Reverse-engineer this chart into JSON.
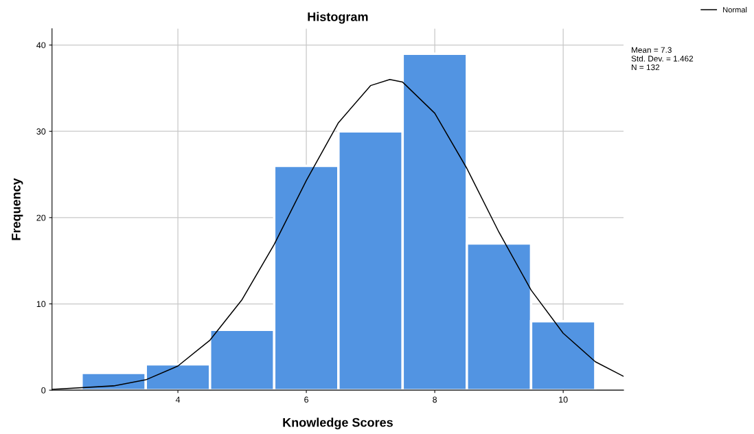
{
  "chart_data": {
    "type": "histogram",
    "title": "Histogram",
    "xlabel": "Knowledge Scores",
    "ylabel": "Frequency",
    "bins": [
      2.5,
      3.5,
      4.5,
      5.5,
      6.5,
      7.5,
      8.5,
      9.5,
      10.5
    ],
    "values": [
      2,
      3,
      7,
      26,
      30,
      39,
      17,
      8
    ],
    "color": "#5294e2",
    "series": [
      {
        "type": "line",
        "name": "Normal",
        "color": "#000000",
        "x": [
          2.04,
          3,
          3.5,
          4,
          4.5,
          5,
          5.5,
          6,
          6.5,
          7,
          7.3,
          7.5,
          8,
          8.5,
          9,
          9.5,
          10,
          10.5,
          10.94
        ],
        "values": [
          0.1,
          0.5,
          1.2,
          2.8,
          5.8,
          10.5,
          16.9,
          24.3,
          31.0,
          35.3,
          36.0,
          35.7,
          32.1,
          25.7,
          18.3,
          11.6,
          6.6,
          3.3,
          1.6
        ]
      }
    ],
    "annotations": [
      "Mean = 7.3",
      "Std. Dev. = 1.462",
      "N = 132"
    ],
    "xlim": [
      2.04,
      10.94
    ],
    "ylim": [
      0,
      41.9
    ],
    "xticks": [
      4,
      6,
      8,
      10
    ],
    "yticks": [
      0,
      10,
      20,
      30,
      40
    ],
    "grid": true,
    "legend": "top right",
    "line_style": "solid",
    "marker": "none"
  }
}
